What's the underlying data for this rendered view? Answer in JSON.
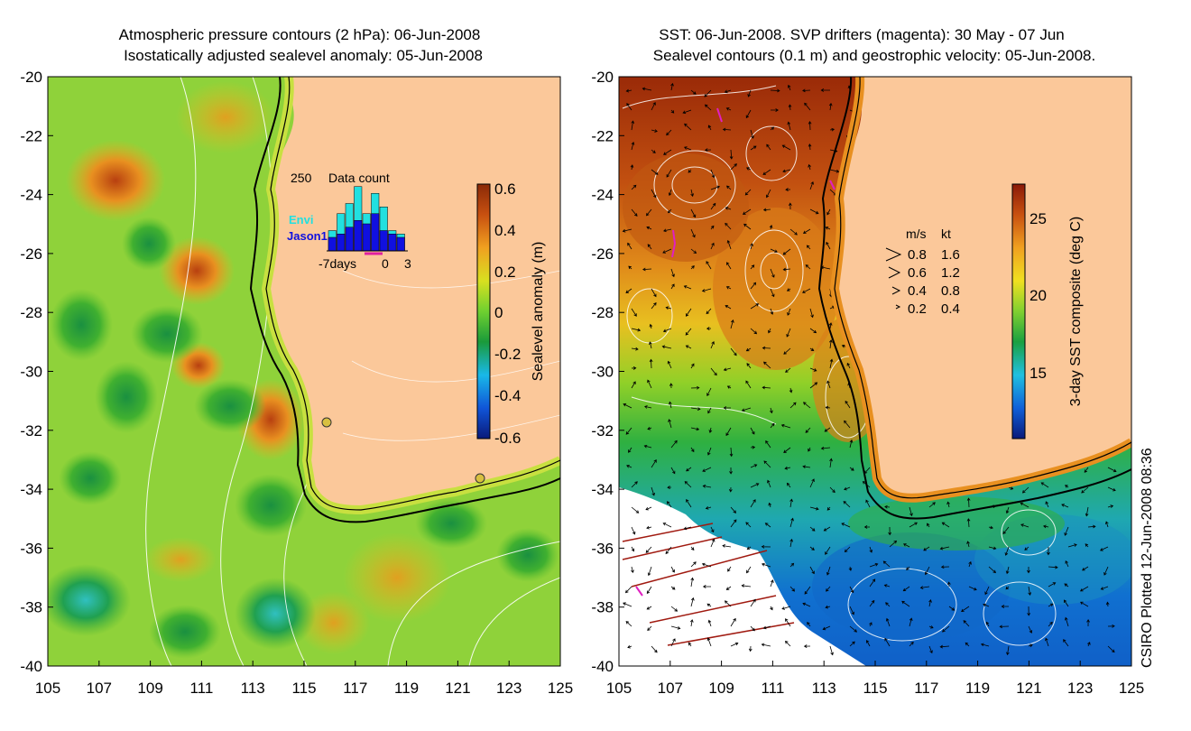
{
  "left_panel": {
    "title_line1": "Atmospheric pressure contours (2 hPa): 06-Jun-2008",
    "title_line2": "Isostatically adjusted sealevel anomaly: 05-Jun-2008",
    "colorbar": {
      "label": "Sealevel anomaly (m)",
      "ticks": [
        "0.6",
        "0.4",
        "0.2",
        "0",
        "-0.2",
        "-0.4",
        "-0.6"
      ],
      "colors": [
        "#0a1a7a",
        "#1055d8",
        "#19b8e8",
        "#1a9a3a",
        "#6fd030",
        "#d8e020",
        "#f0a020",
        "#c85010",
        "#8a2a08"
      ]
    },
    "inset": {
      "title": "Data count",
      "ymax_label": "250",
      "legend": [
        "Envi",
        "Jason1"
      ],
      "x_labels": [
        "-7days",
        "0",
        "3"
      ],
      "envi_color": "#22e0e0",
      "jason_color": "#1010e0"
    }
  },
  "right_panel": {
    "title_line1": "SST: 06-Jun-2008. SVP drifters (magenta): 30 May - 07 Jun",
    "title_line2": "Sealevel contours (0.1 m) and geostrophic velocity: 05-Jun-2008.",
    "colorbar": {
      "label": "3-day SST composite (deg C)",
      "ticks": [
        "25",
        "20",
        "15"
      ],
      "colors": [
        "#0a1a7a",
        "#1060d8",
        "#20c0e0",
        "#1aa040",
        "#80d030",
        "#f0e020",
        "#f0a020",
        "#c85010",
        "#8a1a08"
      ]
    },
    "velocity_legend": {
      "header_ms": "m/s",
      "header_kt": "kt",
      "rows": [
        [
          "0.8",
          "1.6"
        ],
        [
          "0.6",
          "1.2"
        ],
        [
          "0.4",
          "0.8"
        ],
        [
          "0.2",
          "0.4"
        ]
      ]
    }
  },
  "axes": {
    "x_ticks": [
      "105",
      "107",
      "109",
      "111",
      "113",
      "115",
      "117",
      "119",
      "121",
      "123",
      "125"
    ],
    "y_ticks": [
      "-20",
      "-22",
      "-24",
      "-26",
      "-28",
      "-30",
      "-32",
      "-34",
      "-36",
      "-38",
      "-40"
    ]
  },
  "credit": "CSIRO Plotted 12-Jun-2008 08:36",
  "colors": {
    "land": "#fbc89a",
    "coast": "#000000"
  }
}
